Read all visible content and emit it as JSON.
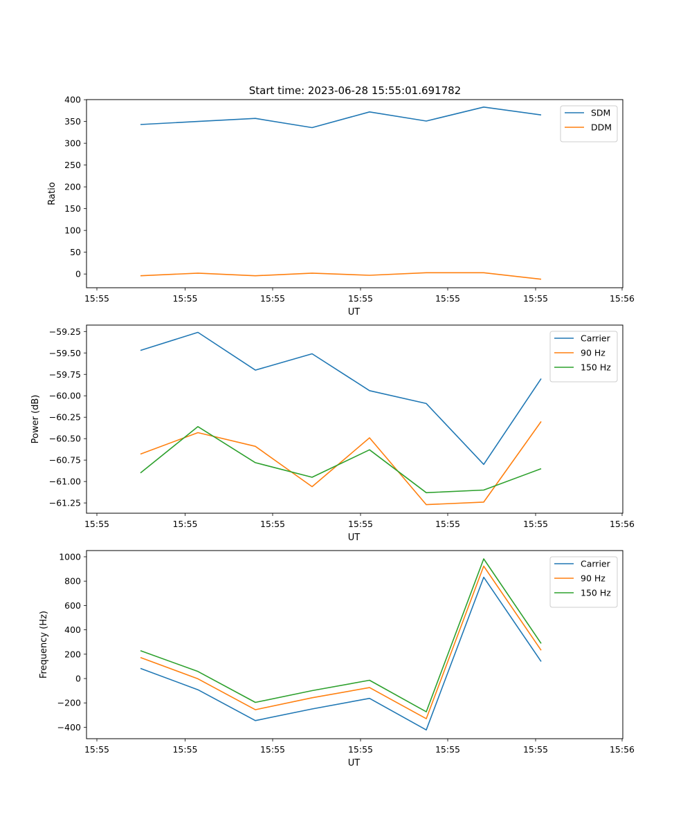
{
  "figure": {
    "title": "Start time: 2023-06-28 15:55:01.691782"
  },
  "chart_data": [
    {
      "type": "line",
      "xlabel": "UT",
      "ylabel": "Ratio",
      "x_tick_labels": [
        "15:55",
        "15:55",
        "15:55",
        "15:55",
        "15:55",
        "15:55",
        "15:56"
      ],
      "y_ticks": [
        0,
        50,
        100,
        150,
        200,
        250,
        300,
        350,
        400
      ],
      "ylim": [
        -31.5,
        400.2
      ],
      "grid": false,
      "legend": "top-right",
      "series": [
        {
          "name": "SDM",
          "color": "#1f77b4",
          "values": [
            343,
            350,
            357,
            336,
            372,
            351,
            383,
            365
          ]
        },
        {
          "name": "DDM",
          "color": "#ff7f0e",
          "values": [
            -4,
            2,
            -4,
            2,
            -3,
            3,
            3,
            -12
          ]
        }
      ]
    },
    {
      "type": "line",
      "xlabel": "UT",
      "ylabel": "Power (dB)",
      "x_tick_labels": [
        "15:55",
        "15:55",
        "15:55",
        "15:55",
        "15:55",
        "15:55",
        "15:56"
      ],
      "y_ticks": [
        -59.25,
        -59.5,
        -59.75,
        -60.0,
        -60.25,
        -60.5,
        -60.75,
        -61.0,
        -61.25
      ],
      "y_tick_labels": [
        "−59.25",
        "−59.50",
        "−59.75",
        "−60.00",
        "−60.25",
        "−60.50",
        "−60.75",
        "−61.00",
        "−61.25"
      ],
      "ylim": [
        -61.37,
        -59.175
      ],
      "grid": false,
      "legend": "top-right",
      "series": [
        {
          "name": "Carrier",
          "color": "#1f77b4",
          "values": [
            -59.47,
            -59.26,
            -59.7,
            -59.51,
            -59.94,
            -60.09,
            -60.8,
            -59.8
          ]
        },
        {
          "name": "90 Hz",
          "color": "#ff7f0e",
          "values": [
            -60.68,
            -60.43,
            -60.59,
            -61.06,
            -60.49,
            -61.27,
            -61.24,
            -60.3
          ]
        },
        {
          "name": "150 Hz",
          "color": "#2ca02c",
          "values": [
            -60.9,
            -60.36,
            -60.78,
            -60.95,
            -60.63,
            -61.13,
            -61.1,
            -60.85
          ]
        }
      ]
    },
    {
      "type": "line",
      "xlabel": "UT",
      "ylabel": "Frequency (Hz)",
      "x_tick_labels": [
        "15:55",
        "15:55",
        "15:55",
        "15:55",
        "15:55",
        "15:55",
        "15:56"
      ],
      "y_ticks": [
        -400,
        -200,
        0,
        200,
        400,
        600,
        800,
        1000
      ],
      "y_tick_labels": [
        "−400",
        "−200",
        "0",
        "200",
        "400",
        "600",
        "800",
        "1000"
      ],
      "ylim": [
        -494,
        1051
      ],
      "grid": false,
      "legend": "top-right",
      "series": [
        {
          "name": "Carrier",
          "color": "#1f77b4",
          "values": [
            83,
            -92,
            -345,
            -250,
            -163,
            -422,
            832,
            140
          ]
        },
        {
          "name": "90 Hz",
          "color": "#ff7f0e",
          "values": [
            173,
            -2,
            -256,
            -158,
            -74,
            -330,
            923,
            232
          ]
        },
        {
          "name": "150 Hz",
          "color": "#2ca02c",
          "values": [
            229,
            58,
            -196,
            -99,
            -14,
            -273,
            983,
            288
          ]
        }
      ]
    }
  ]
}
